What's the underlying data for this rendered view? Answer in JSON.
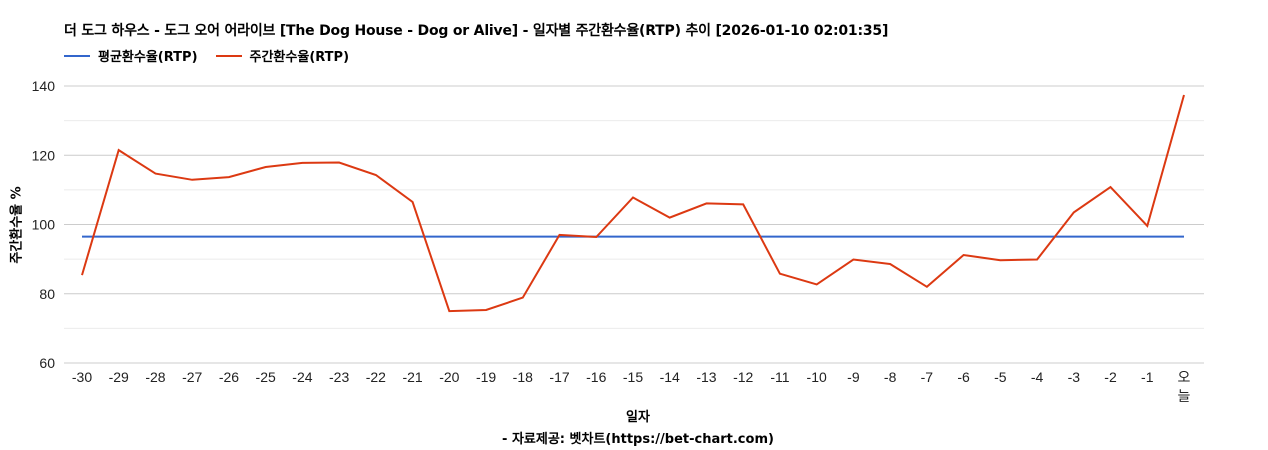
{
  "title": "더 도그 하우스 - 도그 오어 어라이브 [The Dog House - Dog or Alive] - 일자별 주간환수율(RTP) 추이 [2026-01-10 02:01:35]",
  "legend": [
    {
      "label": "평균환수율(RTP)",
      "color": "#3366cc"
    },
    {
      "label": "주간환수율(RTP)",
      "color": "#dc3912"
    }
  ],
  "axes": {
    "ylabel": "주간환수율 %",
    "xlabel": "일자",
    "yticks": [
      "140",
      "120",
      "100",
      "80",
      "60"
    ]
  },
  "source": "- 자료제공: 벳차트(https://bet-chart.com)",
  "chart_data": {
    "type": "line",
    "title": "더 도그 하우스 - 도그 오어 어라이브 [The Dog House - Dog or Alive] - 일자별 주간환수율(RTP) 추이 [2026-01-10 02:01:35]",
    "xlabel": "일자",
    "ylabel": "주간환수율 %",
    "ylim": [
      60,
      140
    ],
    "yticks": [
      60,
      80,
      100,
      120,
      140
    ],
    "grid": true,
    "legend_position": "top",
    "categories": [
      "-30",
      "-29",
      "-28",
      "-27",
      "-26",
      "-25",
      "-24",
      "-23",
      "-22",
      "-21",
      "-20",
      "-19",
      "-18",
      "-17",
      "-16",
      "-15",
      "-14",
      "-13",
      "-12",
      "-11",
      "-10",
      "-9",
      "-8",
      "-7",
      "-6",
      "-5",
      "-4",
      "-3",
      "-2",
      "-1",
      "오늘"
    ],
    "series": [
      {
        "name": "평균환수율(RTP)",
        "color": "#3366cc",
        "values": [
          96.5,
          96.5,
          96.5,
          96.5,
          96.5,
          96.5,
          96.5,
          96.5,
          96.5,
          96.5,
          96.5,
          96.5,
          96.5,
          96.5,
          96.5,
          96.5,
          96.5,
          96.5,
          96.5,
          96.5,
          96.5,
          96.5,
          96.5,
          96.5,
          96.5,
          96.5,
          96.5,
          96.5,
          96.5,
          96.5,
          96.5
        ]
      },
      {
        "name": "주간환수율(RTP)",
        "color": "#dc3912",
        "values": [
          85.4,
          121.5,
          114.7,
          112.9,
          113.7,
          116.6,
          117.8,
          117.9,
          114.3,
          106.5,
          75.0,
          75.3,
          78.9,
          97.0,
          96.4,
          107.8,
          102.0,
          106.1,
          105.8,
          85.8,
          82.7,
          89.9,
          88.6,
          82.0,
          91.2,
          89.7,
          89.9,
          103.5,
          110.8,
          99.6,
          137.4
        ]
      }
    ]
  }
}
